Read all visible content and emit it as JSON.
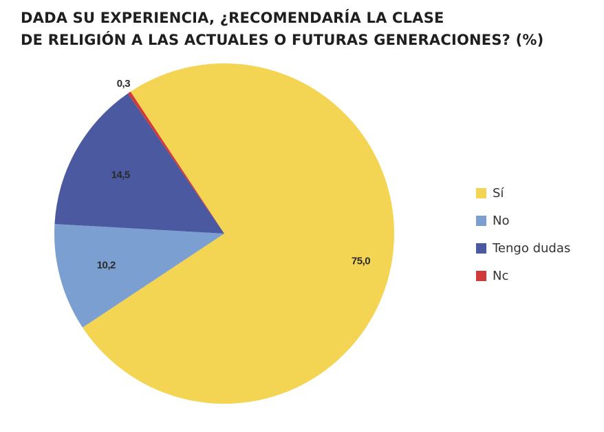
{
  "title": {
    "line1": "DADA SU EXPERIENCIA, ¿RECOMENDARÍA LA CLASE",
    "line2": "DE RELIGIÓN A LAS ACTUALES O FUTURAS GENERACIONES? (%)"
  },
  "chart_data": {
    "type": "pie",
    "title": "DADA SU EXPERIENCIA, ¿RECOMENDARÍA LA CLASE DE RELIGIÓN A LAS ACTUALES O FUTURAS GENERACIONES? (%)",
    "unit": "%",
    "slices": [
      {
        "name": "Sí",
        "value": 75.0,
        "label": "75,0",
        "color": "#F4D453"
      },
      {
        "name": "No",
        "value": 10.2,
        "label": "10,2",
        "color": "#7A9FD0"
      },
      {
        "name": "Tengo dudas",
        "value": 14.5,
        "label": "14,5",
        "color": "#4B5AA0"
      },
      {
        "name": "Nc",
        "value": 0.3,
        "label": "0,3",
        "color": "#D03A3A"
      }
    ],
    "legend_position": "right"
  },
  "legend": [
    {
      "label": "Sí",
      "color": "#F4D453"
    },
    {
      "label": "No",
      "color": "#7A9FD0"
    },
    {
      "label": "Tengo dudas",
      "color": "#4B5AA0"
    },
    {
      "label": "Nc",
      "color": "#D03A3A"
    }
  ]
}
